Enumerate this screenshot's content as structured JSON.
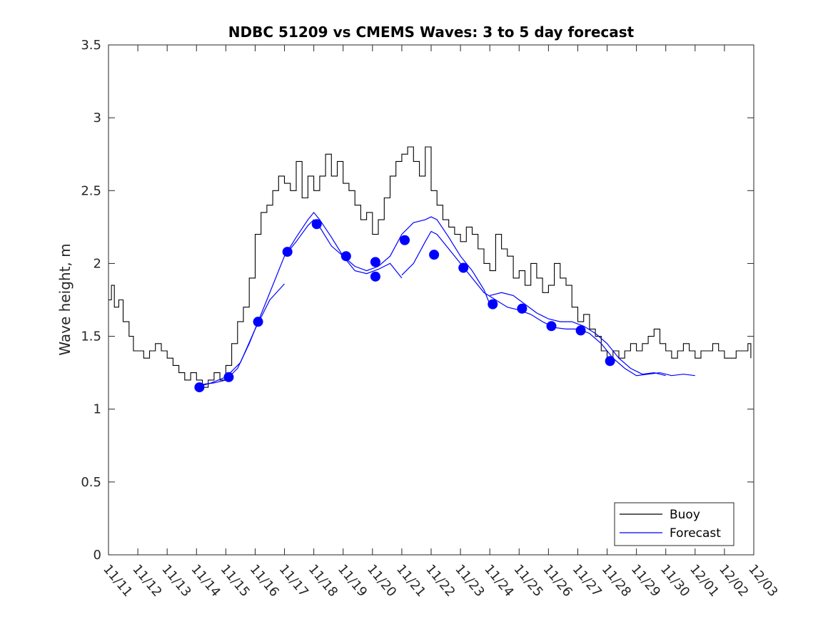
{
  "chart_data": {
    "type": "line",
    "title": "NDBC 51209 vs CMEMS Waves: 3 to 5 day forecast",
    "xlabel": "",
    "ylabel": "Wave height, m",
    "ylim": [
      0,
      3.5
    ],
    "yticks": [
      "0",
      "0.5",
      "1",
      "1.5",
      "2",
      "2.5",
      "3",
      "3.5"
    ],
    "xlim": [
      0,
      22
    ],
    "xtick_labels": [
      "11/11",
      "11/12",
      "11/13",
      "11/14",
      "11/15",
      "11/16",
      "11/17",
      "11/18",
      "11/19",
      "11/20",
      "11/21",
      "11/22",
      "11/23",
      "11/24",
      "11/25",
      "11/26",
      "11/27",
      "11/28",
      "11/29",
      "11/30",
      "12/01",
      "12/02",
      "12/03"
    ],
    "grid": false,
    "legend_position": "bottom-right",
    "colors": {
      "buoy": "#000000",
      "forecast": "#0000ff"
    },
    "series": [
      {
        "name": "Buoy",
        "x": [
          0.0,
          0.1,
          0.2,
          0.35,
          0.5,
          0.7,
          0.85,
          1.0,
          1.2,
          1.4,
          1.6,
          1.8,
          2.0,
          2.2,
          2.4,
          2.6,
          2.8,
          3.0,
          3.2,
          3.4,
          3.6,
          3.8,
          4.0,
          4.2,
          4.4,
          4.6,
          4.8,
          5.0,
          5.2,
          5.4,
          5.6,
          5.8,
          6.0,
          6.2,
          6.4,
          6.6,
          6.8,
          7.0,
          7.2,
          7.4,
          7.6,
          7.8,
          8.0,
          8.2,
          8.4,
          8.6,
          8.8,
          9.0,
          9.2,
          9.4,
          9.6,
          9.8,
          10.0,
          10.2,
          10.4,
          10.6,
          10.8,
          11.0,
          11.2,
          11.4,
          11.6,
          11.8,
          12.0,
          12.2,
          12.4,
          12.6,
          12.8,
          13.0,
          13.2,
          13.4,
          13.6,
          13.8,
          14.0,
          14.2,
          14.4,
          14.6,
          14.8,
          15.0,
          15.2,
          15.4,
          15.6,
          15.8,
          16.0,
          16.2,
          16.4,
          16.6,
          16.8,
          17.0,
          17.2,
          17.4,
          17.6,
          17.8,
          18.0,
          18.2,
          18.4,
          18.6,
          18.8,
          19.0,
          19.2,
          19.4,
          19.6,
          19.8,
          20.0,
          20.2,
          20.4,
          20.6,
          20.8,
          21.0,
          21.2,
          21.4,
          21.6,
          21.8,
          21.9
        ],
        "y": [
          1.75,
          1.85,
          1.7,
          1.75,
          1.6,
          1.5,
          1.4,
          1.4,
          1.35,
          1.4,
          1.45,
          1.4,
          1.35,
          1.3,
          1.25,
          1.2,
          1.25,
          1.2,
          1.15,
          1.2,
          1.25,
          1.2,
          1.3,
          1.45,
          1.6,
          1.7,
          1.9,
          2.2,
          2.35,
          2.4,
          2.5,
          2.6,
          2.55,
          2.5,
          2.7,
          2.45,
          2.6,
          2.5,
          2.6,
          2.75,
          2.6,
          2.7,
          2.55,
          2.5,
          2.4,
          2.3,
          2.35,
          2.2,
          2.3,
          2.45,
          2.6,
          2.7,
          2.75,
          2.8,
          2.7,
          2.6,
          2.8,
          2.5,
          2.4,
          2.3,
          2.25,
          2.2,
          2.15,
          2.25,
          2.2,
          2.1,
          2.0,
          1.95,
          2.2,
          2.1,
          2.05,
          1.9,
          1.95,
          1.85,
          2.0,
          1.9,
          1.8,
          1.85,
          2.0,
          1.9,
          1.85,
          1.7,
          1.6,
          1.65,
          1.55,
          1.5,
          1.4,
          1.35,
          1.4,
          1.35,
          1.4,
          1.45,
          1.4,
          1.45,
          1.5,
          1.55,
          1.45,
          1.4,
          1.35,
          1.4,
          1.45,
          1.4,
          1.35,
          1.4,
          1.4,
          1.45,
          1.4,
          1.35,
          1.35,
          1.4,
          1.4,
          1.45,
          1.35
        ]
      },
      {
        "name": "Forecast",
        "segments": [
          {
            "x": [
              3.0,
              3.5,
              4.0,
              4.5,
              5.0,
              5.5,
              6.0
            ],
            "y": [
              1.15,
              1.18,
              1.22,
              1.32,
              1.55,
              1.75,
              1.86
            ]
          },
          {
            "x": [
              3.2,
              3.6,
              4.0,
              4.4,
              4.8,
              5.2,
              5.6,
              6.0,
              6.4,
              6.8,
              7.0,
              7.2,
              7.6,
              8.0,
              8.4,
              8.8,
              9.2,
              9.6,
              10.0
            ],
            "y": [
              1.17,
              1.18,
              1.2,
              1.28,
              1.45,
              1.65,
              1.85,
              2.05,
              2.15,
              2.26,
              2.3,
              2.25,
              2.12,
              2.05,
              1.95,
              1.93,
              1.96,
              2.0,
              1.9
            ]
          },
          {
            "x": [
              6.0,
              6.4,
              6.8,
              7.0,
              7.2,
              7.6,
              8.0,
              8.4,
              8.8,
              9.2,
              9.6,
              10.0,
              10.4,
              10.8,
              11.0,
              11.2,
              11.6,
              12.0,
              12.4,
              12.8,
              13.0
            ],
            "y": [
              2.05,
              2.18,
              2.3,
              2.35,
              2.3,
              2.18,
              2.05,
              1.98,
              1.95,
              1.98,
              2.05,
              2.2,
              2.28,
              2.3,
              2.32,
              2.3,
              2.18,
              2.05,
              1.95,
              1.82,
              1.72
            ]
          },
          {
            "x": [
              10.0,
              10.4,
              10.8,
              11.0,
              11.2,
              11.6,
              12.0,
              12.4,
              12.8,
              13.2,
              13.6,
              14.0,
              14.4,
              14.8,
              15.2,
              15.6,
              16.0,
              16.4,
              16.8,
              17.2,
              17.6,
              18.0,
              18.4,
              18.8,
              19.2,
              19.6,
              20.0
            ],
            "y": [
              1.92,
              2.0,
              2.15,
              2.22,
              2.2,
              2.1,
              2.0,
              1.9,
              1.8,
              1.75,
              1.7,
              1.68,
              1.65,
              1.6,
              1.56,
              1.55,
              1.55,
              1.52,
              1.45,
              1.35,
              1.28,
              1.23,
              1.24,
              1.25,
              1.23,
              1.24,
              1.23
            ]
          },
          {
            "x": [
              13.0,
              13.4,
              13.8,
              14.2,
              14.6,
              15.0,
              15.4,
              15.8,
              16.2,
              16.6,
              17.0,
              17.4,
              17.8,
              18.2,
              18.6,
              19.0
            ],
            "y": [
              1.78,
              1.8,
              1.78,
              1.72,
              1.66,
              1.62,
              1.6,
              1.6,
              1.57,
              1.52,
              1.45,
              1.35,
              1.28,
              1.24,
              1.25,
              1.23
            ]
          }
        ],
        "markers": {
          "x": [
            3.1,
            4.1,
            5.1,
            6.1,
            7.1,
            8.1,
            9.1,
            9.1,
            10.1,
            11.1,
            12.1,
            13.1,
            14.1,
            15.1,
            16.1,
            17.1
          ],
          "y": [
            1.15,
            1.22,
            1.6,
            2.08,
            2.27,
            2.05,
            2.01,
            1.91,
            2.16,
            2.06,
            1.97,
            1.72,
            1.69,
            1.57,
            1.54,
            1.33
          ]
        }
      }
    ]
  }
}
